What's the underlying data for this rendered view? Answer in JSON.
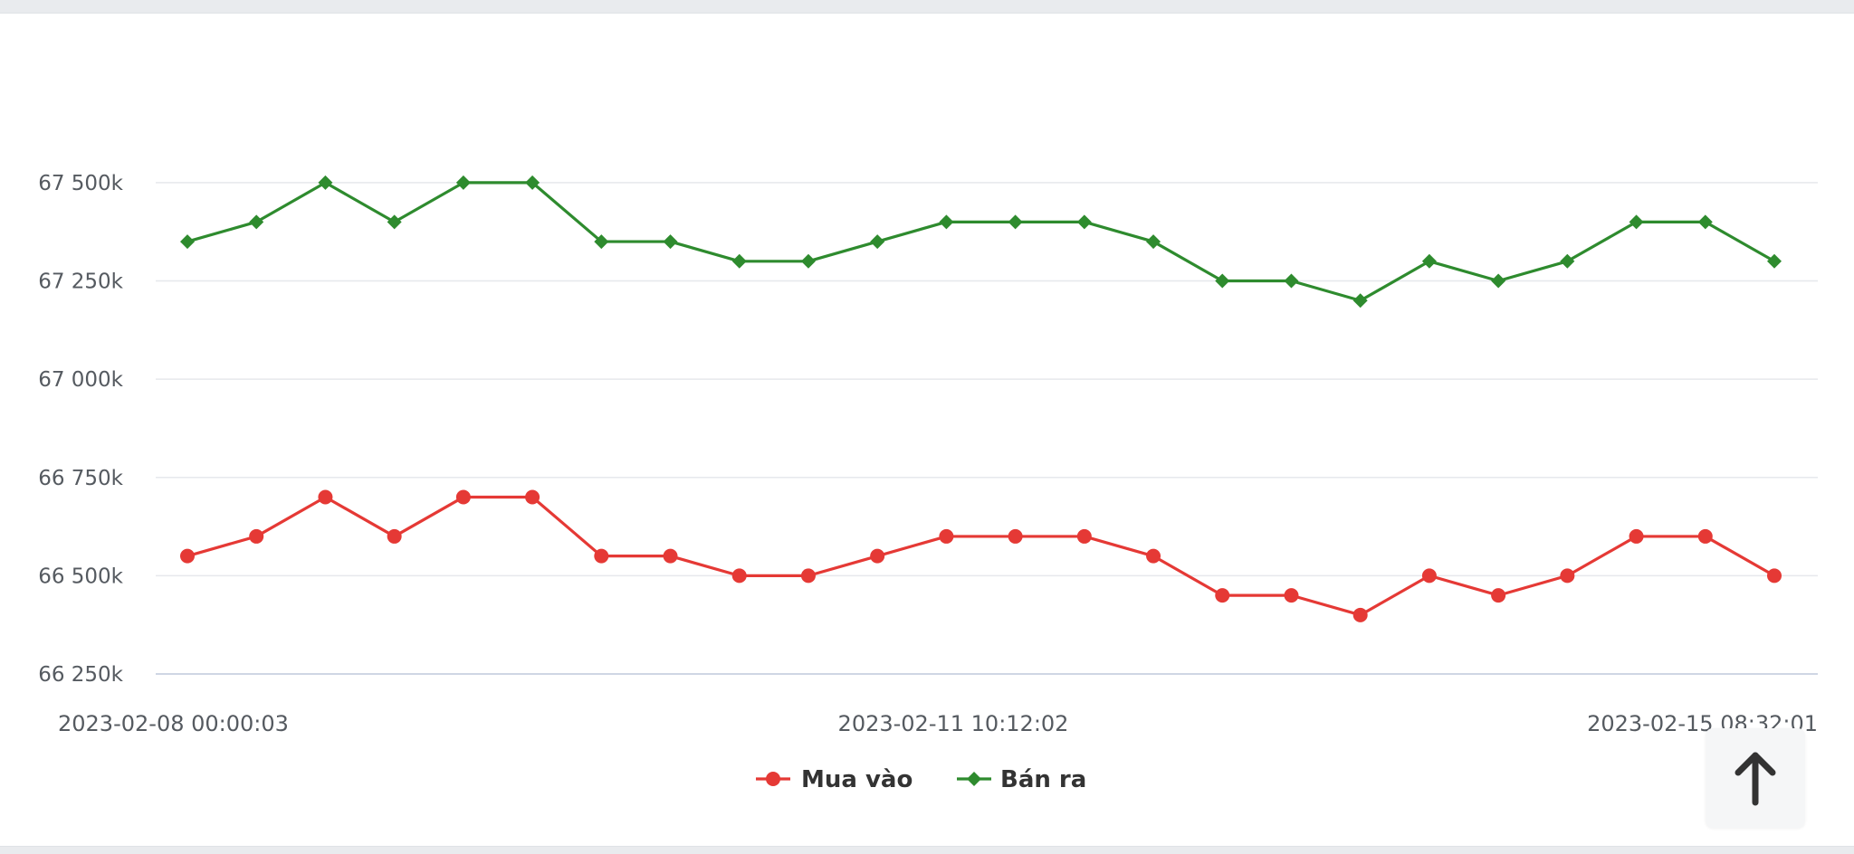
{
  "chart_data": {
    "type": "line",
    "y_ticks": [
      "66 250k",
      "66 500k",
      "66 750k",
      "67 000k",
      "67 250k",
      "67 500k"
    ],
    "y_tick_values": [
      66250,
      66500,
      66750,
      67000,
      67250,
      67500
    ],
    "ylim": [
      66250,
      67700
    ],
    "x_tick_labels": [
      "2023-02-08 00:00:03",
      "2023-02-11 10:12:02",
      "2023-02-15 08:32:01"
    ],
    "grid": true,
    "legend_position": "bottom-center",
    "series": [
      {
        "name": "Mua vào",
        "color": "#e53935",
        "marker": "circle",
        "values": [
          66550,
          66600,
          66700,
          66600,
          66700,
          66700,
          66550,
          66550,
          66500,
          66500,
          66550,
          66600,
          66600,
          66600,
          66550,
          66450,
          66450,
          66400,
          66500,
          66450,
          66500,
          66600,
          66600,
          66500
        ]
      },
      {
        "name": "Bán ra",
        "color": "#2e8b2e",
        "marker": "diamond",
        "values": [
          67350,
          67400,
          67500,
          67400,
          67500,
          67500,
          67350,
          67350,
          67300,
          67300,
          67350,
          67400,
          67400,
          67400,
          67350,
          67250,
          67250,
          67200,
          67300,
          67250,
          67300,
          67400,
          67400,
          67300
        ]
      }
    ]
  },
  "scroll_top": {
    "icon": "arrow-up-icon"
  }
}
